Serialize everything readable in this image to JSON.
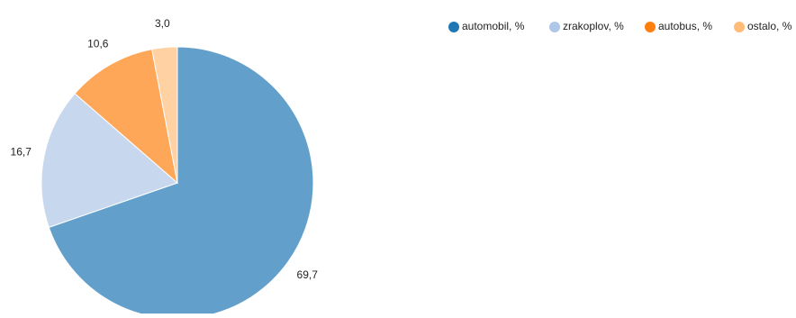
{
  "chart_data": {
    "type": "pie",
    "categories": [
      "automobil, %",
      "zrakoplov, %",
      "autobus, %",
      "ostalo, %"
    ],
    "values": [
      69.7,
      16.7,
      10.6,
      3.0
    ],
    "value_labels": [
      "69,7",
      "16,7",
      "10,6",
      "3,0"
    ],
    "legend_markers": [
      "#1f77b4",
      "#aec7e8",
      "#ff7f0e",
      "#ffbb78"
    ],
    "slice_colors": [
      "#62a0cb",
      "#c7d8ee",
      "#ffa758",
      "#ffd1a3"
    ],
    "legend_position": "top-right",
    "start_angle_deg": 0,
    "direction": "clockwise"
  }
}
